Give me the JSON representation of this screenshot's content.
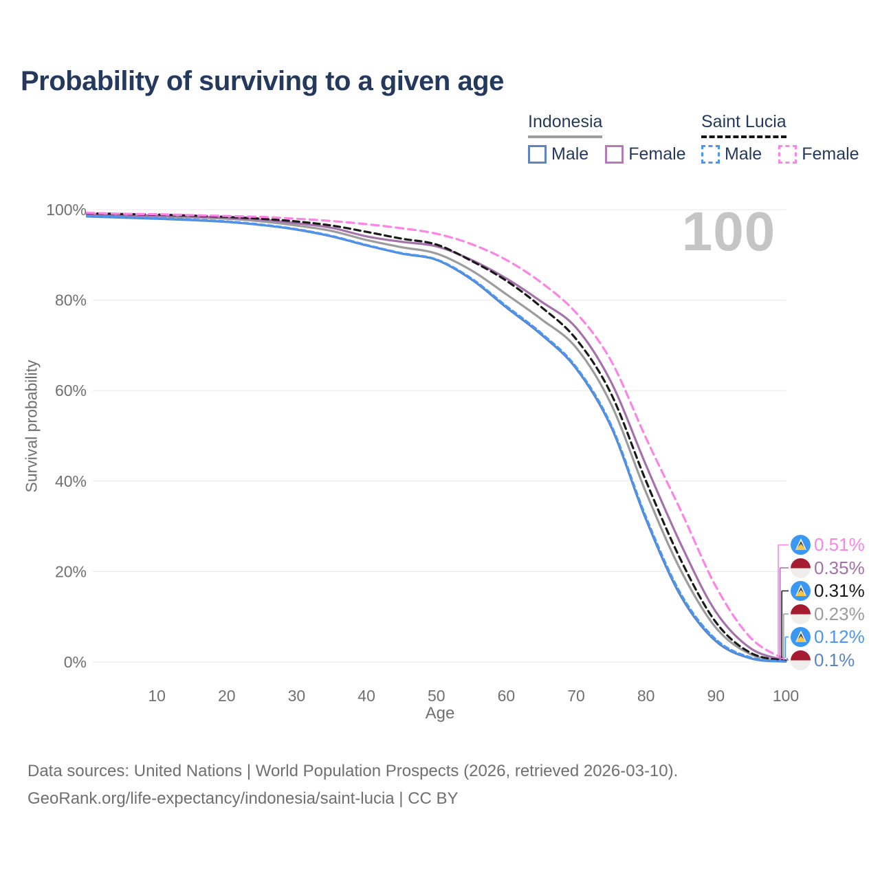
{
  "page": {
    "title": "Probability of surviving to a given age",
    "watermark": "100"
  },
  "legend": {
    "groups": [
      {
        "label": "Indonesia",
        "underline_color": "#9e9e9e",
        "underline_style": "solid",
        "items": [
          {
            "label": "Male",
            "color": "#5b84c0",
            "style": "solid"
          },
          {
            "label": "Female",
            "color": "#b57ab8",
            "style": "solid"
          }
        ]
      },
      {
        "label": "Saint Lucia",
        "underline_color": "#141414",
        "underline_style": "dashed",
        "items": [
          {
            "label": "Male",
            "color": "#4b96f3",
            "style": "dashed"
          },
          {
            "label": "Female",
            "color": "#fb84e4",
            "style": "dashed"
          }
        ]
      }
    ]
  },
  "axes": {
    "x_label": "Age",
    "y_label": "Survival probability"
  },
  "chart_data": {
    "type": "line",
    "title": "Probability of surviving to a given age",
    "xlabel": "Age",
    "ylabel": "Survival probability",
    "xlim": [
      0,
      100
    ],
    "ylim": [
      0,
      100
    ],
    "x_ticks": [
      10,
      20,
      30,
      40,
      50,
      60,
      70,
      80,
      90,
      100
    ],
    "y_ticks": [
      0,
      20,
      40,
      60,
      80,
      100
    ],
    "y_tick_suffix": "%",
    "grid": "horizontal",
    "legend_position": "top-right",
    "x": [
      0,
      5,
      10,
      15,
      20,
      25,
      30,
      35,
      40,
      45,
      50,
      55,
      60,
      65,
      70,
      75,
      80,
      85,
      90,
      95,
      100
    ],
    "series": [
      {
        "name": "Saint Lucia Female",
        "country": "Saint Lucia",
        "sex": "Female",
        "color": "#fb84e4",
        "dash": "dashed",
        "flag": "saintlucia",
        "end_label": "0.51%",
        "values": [
          99.3,
          99.1,
          99.0,
          98.8,
          98.6,
          98.4,
          98.0,
          97.5,
          96.8,
          95.9,
          94.7,
          92.4,
          88.9,
          83.9,
          77.2,
          66.6,
          49.5,
          33.4,
          16.7,
          5.3,
          0.51
        ]
      },
      {
        "name": "Indonesia Female",
        "country": "Indonesia",
        "sex": "Female",
        "color": "#a471ab",
        "dash": "solid",
        "flag": "indonesia",
        "end_label": "0.35%",
        "values": [
          99.0,
          98.85,
          98.7,
          98.5,
          98.2,
          97.8,
          97.0,
          96.0,
          94.1,
          92.9,
          91.9,
          88.9,
          84.8,
          79.7,
          73.9,
          61.9,
          43.5,
          26.0,
          11.1,
          3.0,
          0.35
        ]
      },
      {
        "name": "Saint Lucia",
        "country": "Saint Lucia",
        "sex": "Both",
        "color": "#1a1a1a",
        "dash": "dashed",
        "flag": "saintlucia",
        "end_label": "0.31%",
        "values": [
          99.2,
          99.05,
          98.9,
          98.7,
          98.4,
          98.0,
          97.4,
          96.5,
          95.1,
          93.6,
          92.3,
          88.7,
          84.3,
          78.5,
          71.4,
          59.3,
          40.0,
          22.5,
          8.8,
          2.0,
          0.31
        ]
      },
      {
        "name": "Indonesia",
        "country": "Indonesia",
        "sex": "Both",
        "color": "#9c9c9c",
        "dash": "solid",
        "flag": "indonesia",
        "end_label": "0.23%",
        "values": [
          98.9,
          98.7,
          98.5,
          98.3,
          98.0,
          97.4,
          96.5,
          95.3,
          93.3,
          91.7,
          90.3,
          86.6,
          81.3,
          75.8,
          69.5,
          57.0,
          37.5,
          20.2,
          7.6,
          1.7,
          0.23
        ]
      },
      {
        "name": "Saint Lucia Male",
        "country": "Saint Lucia",
        "sex": "Male",
        "color": "#4b96f3",
        "dash": "dashed",
        "flag": "saintlucia",
        "end_label": "0.12%",
        "values": [
          98.6,
          98.35,
          98.1,
          97.8,
          97.4,
          96.7,
          95.7,
          94.2,
          92.2,
          90.4,
          89.0,
          84.8,
          78.7,
          72.7,
          65.2,
          52.4,
          32.0,
          15.0,
          5.0,
          1.0,
          0.12
        ]
      },
      {
        "name": "Indonesia Male",
        "country": "Indonesia",
        "sex": "Male",
        "color": "#5b84c4",
        "dash": "solid",
        "flag": "indonesia",
        "end_label": "0.1%",
        "values": [
          98.5,
          98.25,
          98.0,
          97.7,
          97.3,
          96.6,
          95.6,
          94.1,
          92.1,
          90.3,
          88.9,
          84.6,
          78.4,
          72.4,
          64.9,
          52.0,
          31.5,
          14.5,
          4.6,
          0.8,
          0.1
        ]
      }
    ]
  },
  "footer": {
    "line1": "Data sources: United Nations | World Population Prospects (2026, retrieved 2026-03-10).",
    "line2": "GeoRank.org/life-expectancy/indonesia/saint-lucia | CC BY"
  }
}
